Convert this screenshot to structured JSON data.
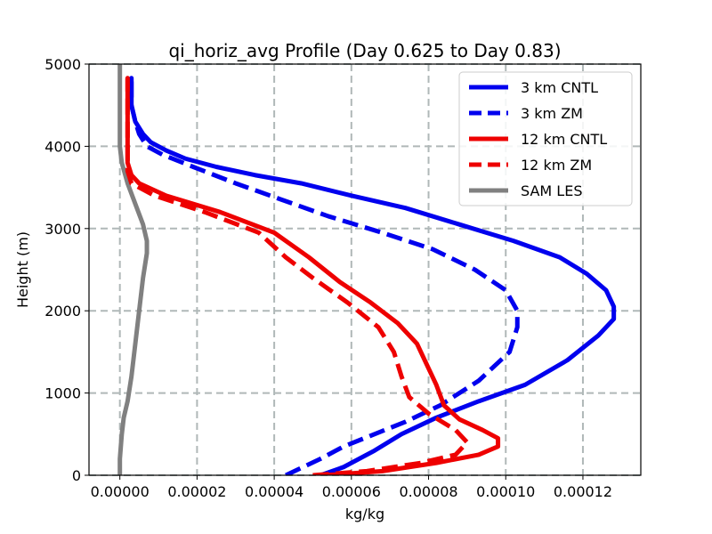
{
  "chart_data": {
    "type": "line",
    "title": "qi_horiz_avg Profile (Day 0.625 to Day 0.83)",
    "xlabel": "kg/kg",
    "ylabel": "Height (m)",
    "xlim": [
      -8e-06,
      0.000135
    ],
    "ylim": [
      0,
      5000
    ],
    "x_ticks": [
      0.0,
      2e-05,
      4e-05,
      6e-05,
      8e-05,
      0.0001,
      0.00012
    ],
    "x_tick_labels": [
      "0.00000",
      "0.00002",
      "0.00004",
      "0.00006",
      "0.00008",
      "0.00010",
      "0.00012"
    ],
    "y_ticks": [
      0,
      1000,
      2000,
      3000,
      4000,
      5000
    ],
    "y_tick_labels": [
      "0",
      "1000",
      "2000",
      "3000",
      "4000",
      "5000"
    ],
    "grid": true,
    "legend_position": "top-right",
    "series": [
      {
        "name": "3 km CNTL",
        "color": "#0000ee",
        "style": "solid",
        "points": [
          [
            5.2e-05,
            0
          ],
          [
            5.8e-05,
            100
          ],
          [
            6.6e-05,
            300
          ],
          [
            7.3e-05,
            500
          ],
          [
            8.2e-05,
            700
          ],
          [
            9.3e-05,
            900
          ],
          [
            0.000105,
            1100
          ],
          [
            0.000116,
            1400
          ],
          [
            0.000124,
            1700
          ],
          [
            0.000128,
            1900
          ],
          [
            0.000128,
            2050
          ],
          [
            0.000126,
            2250
          ],
          [
            0.000121,
            2450
          ],
          [
            0.000114,
            2650
          ],
          [
            0.000102,
            2850
          ],
          [
            8.8e-05,
            3050
          ],
          [
            7.4e-05,
            3250
          ],
          [
            6e-05,
            3400
          ],
          [
            4.7e-05,
            3550
          ],
          [
            3.5e-05,
            3650
          ],
          [
            2.5e-05,
            3750
          ],
          [
            1.7e-05,
            3850
          ],
          [
            1.2e-05,
            3950
          ],
          [
            8e-06,
            4050
          ],
          [
            6e-06,
            4150
          ],
          [
            4e-06,
            4300
          ],
          [
            3e-06,
            4500
          ],
          [
            3e-06,
            4650
          ],
          [
            3e-06,
            4750
          ],
          [
            3e-06,
            4830
          ]
        ]
      },
      {
        "name": "3 km ZM",
        "color": "#0000ee",
        "style": "dashed",
        "points": [
          [
            4.3e-05,
            0
          ],
          [
            5.2e-05,
            200
          ],
          [
            5.8e-05,
            350
          ],
          [
            6.6e-05,
            500
          ],
          [
            7.4e-05,
            650
          ],
          [
            8.3e-05,
            850
          ],
          [
            9.3e-05,
            1150
          ],
          [
            0.000101,
            1500
          ],
          [
            0.000103,
            1800
          ],
          [
            0.000103,
            2000
          ],
          [
            0.0001,
            2250
          ],
          [
            9.2e-05,
            2500
          ],
          [
            8.1e-05,
            2750
          ],
          [
            6.8e-05,
            2950
          ],
          [
            5.4e-05,
            3150
          ],
          [
            4.2e-05,
            3350
          ],
          [
            3e-05,
            3550
          ],
          [
            1.9e-05,
            3750
          ],
          [
            1.1e-05,
            3900
          ],
          [
            7e-06,
            4000
          ],
          [
            5e-06,
            4150
          ],
          [
            4e-06,
            4300
          ],
          [
            3e-06,
            4500
          ],
          [
            3e-06,
            4650
          ],
          [
            3e-06,
            4830
          ]
        ]
      },
      {
        "name": "12 km CNTL",
        "color": "#ee0000",
        "style": "solid",
        "points": [
          [
            5.3e-05,
            0
          ],
          [
            6.8e-05,
            50
          ],
          [
            8.2e-05,
            150
          ],
          [
            9.3e-05,
            250
          ],
          [
            9.8e-05,
            350
          ],
          [
            9.8e-05,
            450
          ],
          [
            9.4e-05,
            550
          ],
          [
            8.8e-05,
            680
          ],
          [
            8.4e-05,
            850
          ],
          [
            8.2e-05,
            1100
          ],
          [
            8e-05,
            1300
          ],
          [
            7.7e-05,
            1600
          ],
          [
            7.2e-05,
            1850
          ],
          [
            6.5e-05,
            2100
          ],
          [
            5.7e-05,
            2350
          ],
          [
            4.9e-05,
            2650
          ],
          [
            4e-05,
            2950
          ],
          [
            2.6e-05,
            3200
          ],
          [
            1.2e-05,
            3400
          ],
          [
            5e-06,
            3550
          ],
          [
            3e-06,
            3650
          ],
          [
            2e-06,
            3800
          ],
          [
            2e-06,
            4000
          ],
          [
            2e-06,
            4200
          ],
          [
            2e-06,
            4400
          ],
          [
            2e-06,
            4600
          ],
          [
            2e-06,
            4830
          ]
        ]
      },
      {
        "name": "12 km ZM",
        "color": "#ee0000",
        "style": "dashed",
        "points": [
          [
            5e-05,
            0
          ],
          [
            6.4e-05,
            50
          ],
          [
            7.8e-05,
            150
          ],
          [
            8.7e-05,
            250
          ],
          [
            9e-05,
            400
          ],
          [
            8.7e-05,
            550
          ],
          [
            8e-05,
            750
          ],
          [
            7.5e-05,
            950
          ],
          [
            7.3e-05,
            1200
          ],
          [
            7.1e-05,
            1500
          ],
          [
            6.7e-05,
            1800
          ],
          [
            5.9e-05,
            2100
          ],
          [
            5e-05,
            2400
          ],
          [
            4.3e-05,
            2650
          ],
          [
            3.6e-05,
            2950
          ],
          [
            2.2e-05,
            3200
          ],
          [
            9e-06,
            3400
          ],
          [
            3e-06,
            3550
          ],
          [
            2e-06,
            3700
          ],
          [
            2e-06,
            4000
          ],
          [
            2e-06,
            4300
          ],
          [
            2e-06,
            4600
          ],
          [
            2e-06,
            4830
          ]
        ]
      },
      {
        "name": "SAM LES",
        "color": "#808080",
        "style": "solid",
        "points": [
          [
            0.0,
            0
          ],
          [
            0.0,
            200
          ],
          [
            5e-07,
            500
          ],
          [
            1e-06,
            700
          ],
          [
            2e-06,
            900
          ],
          [
            3e-06,
            1200
          ],
          [
            4e-06,
            1600
          ],
          [
            5e-06,
            2000
          ],
          [
            6e-06,
            2400
          ],
          [
            7e-06,
            2700
          ],
          [
            7e-06,
            2850
          ],
          [
            6e-06,
            3050
          ],
          [
            4e-06,
            3300
          ],
          [
            2e-06,
            3550
          ],
          [
            5e-07,
            3800
          ],
          [
            0.0,
            4000
          ],
          [
            0.0,
            4400
          ],
          [
            0.0,
            4800
          ],
          [
            0.0,
            5000
          ]
        ]
      }
    ]
  }
}
